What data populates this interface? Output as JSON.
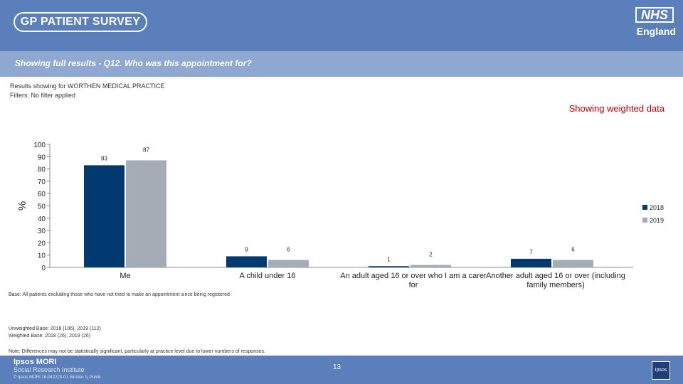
{
  "header": {
    "logo_text": "GP PATIENT SURVEY",
    "nhs_logo": "NHS",
    "nhs_sub": "England"
  },
  "subheader": {
    "title": "Showing full results - Q12.  Who was this appointment for?"
  },
  "info": {
    "line1": "Results showing for WORTHEN MEDICAL PRACTICE",
    "line2": "Filters: No filter applied"
  },
  "weighted_label": "Showing weighted data",
  "notes": {
    "base": "Base: All patients excluding those who have not tried to make an appointment since being registered",
    "unweighted": "Unweighted Base: 2018 (106), 2019 (112)",
    "weighted": "Weighted Base: 2018 (26), 2019 (26)",
    "differences": "Note: Differences may not be statistically significant, particularly at practice level due to lower numbers of responses."
  },
  "footer": {
    "company": "Ipsos MORI",
    "division": "Social Research Institute",
    "legal": "© Ipsos MORI      18-042223-01 Version 1| Public",
    "page": "13",
    "logo_text": "Ipsos"
  },
  "chart_data": {
    "type": "bar",
    "categories": [
      "Me",
      "A child under 16",
      "An adult aged 16 or over who I am a carer for",
      "Another adult aged 16 or over (including family members)"
    ],
    "category_lines": [
      [
        "Me"
      ],
      [
        "A child under 16"
      ],
      [
        "An adult aged 16 or over who I am a carer",
        "for"
      ],
      [
        "Another adult aged 16 or over (including",
        "family members)"
      ]
    ],
    "series": [
      {
        "name": "2018",
        "values": [
          83,
          9,
          1,
          7
        ],
        "color": "#003a70"
      },
      {
        "name": "2019",
        "values": [
          87,
          6,
          2,
          6
        ],
        "color": "#a5acb5"
      }
    ],
    "ylabel": "%",
    "ylim": [
      0,
      100
    ],
    "yticks": [
      0,
      10,
      20,
      30,
      40,
      50,
      60,
      70,
      80,
      90,
      100
    ],
    "grid": false,
    "legend": "right"
  }
}
